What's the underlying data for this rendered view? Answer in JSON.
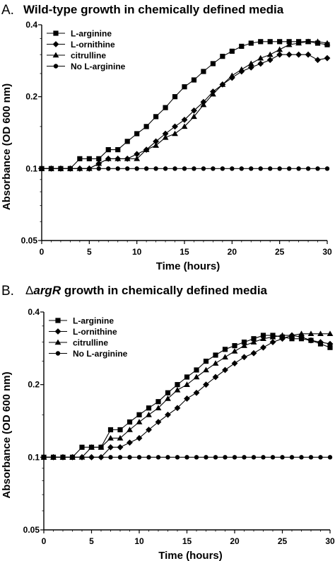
{
  "chart_data": [
    {
      "type": "line",
      "panel_label": "A.",
      "title": "Wild-type growth in chemically defined media",
      "title_italic": "",
      "title_delta": "",
      "xlabel": "Time (hours)",
      "ylabel": "Absorbance (OD 600 nm)",
      "xlim": [
        0,
        30
      ],
      "ylim": [
        0.05,
        0.4
      ],
      "yscale": "log",
      "xticks": [
        "0",
        "5",
        "10",
        "15",
        "20",
        "25",
        "30"
      ],
      "yticks": [
        "0.05",
        "0.1",
        "0.2",
        "0.4"
      ],
      "legend_position": "top-left",
      "x": [
        0,
        1,
        2,
        3,
        4,
        5,
        6,
        7,
        8,
        9,
        10,
        11,
        12,
        13,
        14,
        15,
        16,
        17,
        18,
        19,
        20,
        21,
        22,
        23,
        24,
        25,
        26,
        27,
        28,
        29,
        30
      ],
      "series": [
        {
          "name": "L-arginine",
          "marker": "square",
          "values": [
            0.1,
            0.1,
            0.1,
            0.1,
            0.11,
            0.11,
            0.11,
            0.12,
            0.12,
            0.13,
            0.14,
            0.15,
            0.165,
            0.18,
            0.2,
            0.22,
            0.235,
            0.255,
            0.275,
            0.295,
            0.31,
            0.325,
            0.335,
            0.34,
            0.34,
            0.34,
            0.34,
            0.34,
            0.34,
            0.335,
            0.33
          ]
        },
        {
          "name": "L-ornithine",
          "marker": "diamond",
          "values": [
            0.1,
            0.1,
            0.1,
            0.1,
            0.1,
            0.1,
            0.105,
            0.11,
            0.11,
            0.11,
            0.115,
            0.12,
            0.13,
            0.14,
            0.15,
            0.16,
            0.175,
            0.19,
            0.21,
            0.225,
            0.24,
            0.255,
            0.265,
            0.275,
            0.285,
            0.3,
            0.3,
            0.3,
            0.3,
            0.285,
            0.29
          ]
        },
        {
          "name": "citrulline",
          "marker": "triangle",
          "values": [
            0.1,
            0.1,
            0.1,
            0.1,
            0.1,
            0.1,
            0.105,
            0.11,
            0.11,
            0.11,
            0.11,
            0.12,
            0.125,
            0.135,
            0.14,
            0.15,
            0.165,
            0.185,
            0.205,
            0.225,
            0.245,
            0.26,
            0.275,
            0.29,
            0.3,
            0.315,
            0.33,
            0.335,
            0.34,
            0.34,
            0.335
          ]
        },
        {
          "name": "No L-arginine",
          "marker": "circle",
          "values": [
            0.1,
            0.1,
            0.1,
            0.1,
            0.1,
            0.1,
            0.1,
            0.1,
            0.1,
            0.1,
            0.1,
            0.1,
            0.1,
            0.1,
            0.1,
            0.1,
            0.1,
            0.1,
            0.1,
            0.1,
            0.1,
            0.1,
            0.1,
            0.1,
            0.1,
            0.1,
            0.1,
            0.1,
            0.1,
            0.1,
            0.1
          ]
        }
      ]
    },
    {
      "type": "line",
      "panel_label": "B.",
      "title": " growth in chemically defined media",
      "title_italic": "argR",
      "title_delta": "Δ",
      "xlabel": "Time (hours)",
      "ylabel": "Absorbance (OD 600 nm)",
      "xlim": [
        0,
        30
      ],
      "ylim": [
        0.05,
        0.4
      ],
      "yscale": "log",
      "xticks": [
        "0",
        "5",
        "10",
        "15",
        "20",
        "25",
        "30"
      ],
      "yticks": [
        "0.05",
        "0.1",
        "0.2",
        "0.4"
      ],
      "legend_position": "top-left",
      "x": [
        0,
        1,
        2,
        3,
        4,
        5,
        6,
        7,
        8,
        9,
        10,
        11,
        12,
        13,
        14,
        15,
        16,
        17,
        18,
        19,
        20,
        21,
        22,
        23,
        24,
        25,
        26,
        27,
        28,
        29,
        30
      ],
      "series": [
        {
          "name": "L-arginine",
          "marker": "square",
          "values": [
            0.1,
            0.1,
            0.1,
            0.1,
            0.11,
            0.11,
            0.11,
            0.13,
            0.13,
            0.14,
            0.15,
            0.16,
            0.17,
            0.185,
            0.2,
            0.215,
            0.23,
            0.25,
            0.265,
            0.28,
            0.29,
            0.3,
            0.31,
            0.32,
            0.32,
            0.315,
            0.31,
            0.31,
            0.305,
            0.295,
            0.285
          ]
        },
        {
          "name": "L-ornithine",
          "marker": "diamond",
          "values": [
            0.1,
            0.1,
            0.1,
            0.1,
            0.1,
            0.1,
            0.1,
            0.11,
            0.11,
            0.115,
            0.12,
            0.13,
            0.14,
            0.15,
            0.16,
            0.175,
            0.185,
            0.2,
            0.215,
            0.23,
            0.245,
            0.26,
            0.27,
            0.285,
            0.3,
            0.31,
            0.32,
            0.315,
            0.305,
            0.3,
            0.295
          ]
        },
        {
          "name": "citrulline",
          "marker": "triangle",
          "values": [
            0.1,
            0.1,
            0.1,
            0.1,
            0.1,
            0.11,
            0.11,
            0.12,
            0.12,
            0.13,
            0.14,
            0.15,
            0.16,
            0.175,
            0.19,
            0.2,
            0.215,
            0.23,
            0.245,
            0.26,
            0.275,
            0.29,
            0.3,
            0.31,
            0.315,
            0.32,
            0.32,
            0.325,
            0.325,
            0.325,
            0.325
          ]
        },
        {
          "name": "No L-arginine",
          "marker": "circle",
          "values": [
            0.1,
            0.1,
            0.1,
            0.1,
            0.1,
            0.1,
            0.1,
            0.1,
            0.1,
            0.1,
            0.1,
            0.1,
            0.1,
            0.1,
            0.1,
            0.1,
            0.1,
            0.1,
            0.1,
            0.1,
            0.1,
            0.1,
            0.1,
            0.1,
            0.1,
            0.1,
            0.1,
            0.1,
            0.1,
            0.1,
            0.1
          ]
        }
      ]
    }
  ]
}
